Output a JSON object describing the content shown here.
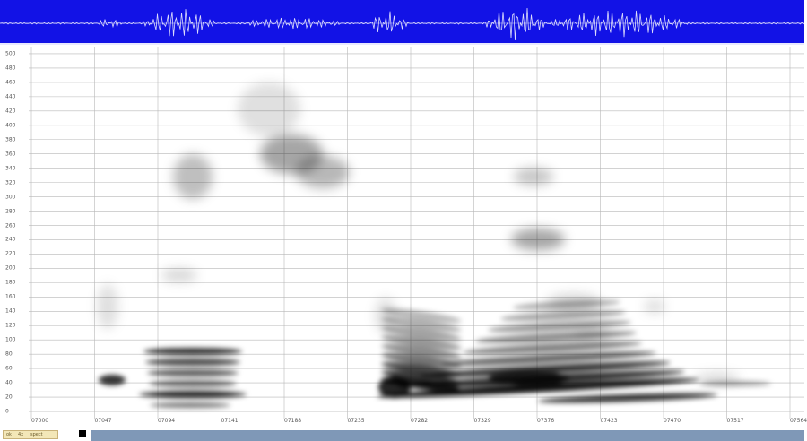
{
  "colors": {
    "wave_bg": "#1212e6",
    "wave_line": "#ffffff",
    "spectrogram_bg": "#ffffff",
    "grid": "#b8b8b8",
    "scrollbar": "#7f98b7"
  },
  "spectrogram": {
    "y_ticks": [
      "0",
      "20",
      "40",
      "60",
      "80",
      "100",
      "120",
      "140",
      "160",
      "180",
      "200",
      "220",
      "240",
      "260",
      "280",
      "300",
      "320",
      "340",
      "360",
      "380",
      "400",
      "420",
      "440",
      "460",
      "480",
      "500"
    ],
    "x_ticks": [
      "07000",
      "07047",
      "07094",
      "07141",
      "07188",
      "07235",
      "07282",
      "07329",
      "07376",
      "07423",
      "07470",
      "07517",
      "07564"
    ]
  },
  "status": {
    "left_text_1": "ok",
    "left_text_2": "4x",
    "left_text_3": "spect"
  }
}
